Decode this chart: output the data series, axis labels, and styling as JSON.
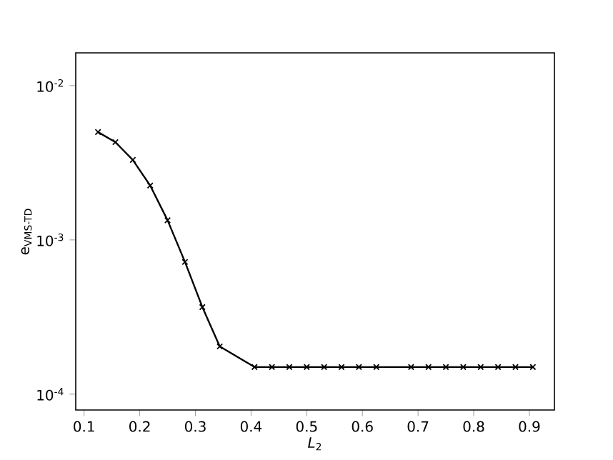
{
  "chart_data": {
    "type": "line",
    "xlabel": "*L*$_{2}$",
    "ylabel": "e$_{VMS-TD}$",
    "log": "y",
    "marker": "cross",
    "line_style": "solid",
    "grid": false,
    "x": [
      0.125,
      0.15625,
      0.1875,
      0.21875,
      0.25,
      0.28125,
      0.3125,
      0.34375,
      0.40625,
      0.4375,
      0.46875,
      0.5,
      0.53125,
      0.5625,
      0.59375,
      0.625,
      0.6875,
      0.71875,
      0.75,
      0.78125,
      0.8125,
      0.84375,
      0.875,
      0.90625
    ],
    "series": [
      {
        "color": "#000000",
        "values": [
          0.005,
          0.0043,
          0.0033,
          0.00225,
          0.00134,
          0.00072,
          0.000367,
          0.000204,
          0.00015,
          0.00015,
          0.00015,
          0.00015,
          0.00015,
          0.00015,
          0.00015,
          0.00015,
          0.00015,
          0.00015,
          0.00015,
          0.00015,
          0.00015,
          0.00015,
          0.00015,
          0.00015
        ]
      }
    ],
    "xlim": [
      0.085,
      0.945
    ],
    "ylim": [
      7.9e-05,
      0.0163
    ],
    "xticks": [
      0.1,
      0.2,
      0.3,
      0.4,
      0.5,
      0.6,
      0.7,
      0.8,
      0.9
    ],
    "yticks": [
      {
        "value": 0.0001,
        "label": "10$^{-4}$"
      },
      {
        "value": 0.001,
        "label": "10$^{-3}$"
      },
      {
        "value": 0.01,
        "label": "10$^{-2}$"
      }
    ]
  }
}
